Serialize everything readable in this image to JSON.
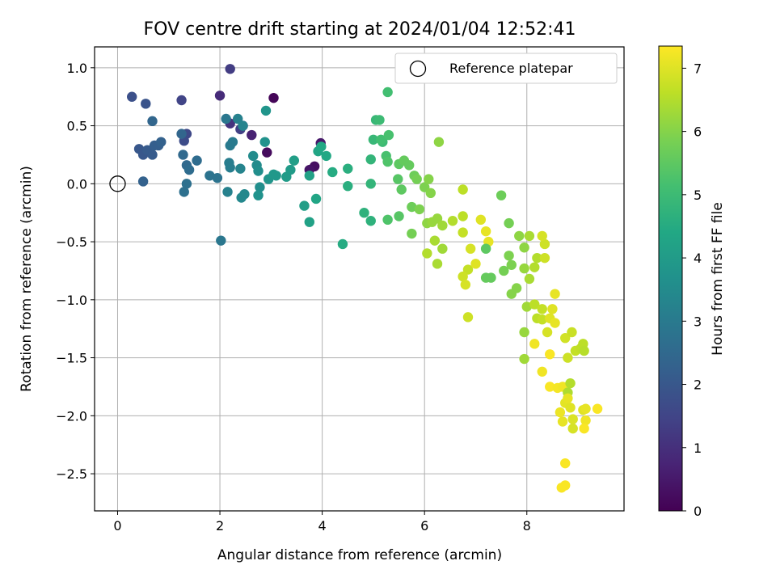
{
  "chart_data": {
    "type": "scatter",
    "title": "FOV centre drift starting at 2024/01/04 12:52:41",
    "xlabel": "Angular distance from reference (arcmin)",
    "ylabel": "Rotation from reference (arcmin)",
    "xlim": [
      -0.45,
      9.9
    ],
    "ylim": [
      -2.82,
      1.18
    ],
    "xticks": [
      0,
      2,
      4,
      6,
      8
    ],
    "xtick_labels": [
      "0",
      "2",
      "4",
      "6",
      "8"
    ],
    "yticks": [
      -2.5,
      -2.0,
      -1.5,
      -1.0,
      -0.5,
      0.0,
      0.5,
      1.0
    ],
    "ytick_labels": [
      "−2.5",
      "−2.0",
      "−1.5",
      "−1.0",
      "−0.5",
      "0.0",
      "0.5",
      "1.0"
    ],
    "grid": true,
    "legend": {
      "label": "Reference platepar",
      "position": "top-right"
    },
    "reference_point": {
      "x": 0,
      "y": 0
    },
    "colorbar": {
      "label": "Hours from first FF file",
      "colormap": "viridis",
      "range": [
        0,
        7.35
      ],
      "ticks": [
        0,
        1,
        2,
        3,
        4,
        5,
        6,
        7
      ],
      "tick_labels": [
        "0",
        "1",
        "2",
        "3",
        "4",
        "5",
        "6",
        "7"
      ]
    },
    "colors": {
      "axes": "#000000",
      "grid": "#b0b0b0"
    },
    "points": [
      {
        "x": 3.05,
        "y": 0.74,
        "c": 0.1
      },
      {
        "x": 2.92,
        "y": 0.27,
        "c": 0.2
      },
      {
        "x": 3.85,
        "y": 0.15,
        "c": 0.3
      },
      {
        "x": 3.75,
        "y": 0.12,
        "c": 0.4
      },
      {
        "x": 3.97,
        "y": 0.35,
        "c": 0.5
      },
      {
        "x": 2.62,
        "y": 0.42,
        "c": 0.7
      },
      {
        "x": 2.45,
        "y": 0.5,
        "c": 0.8
      },
      {
        "x": 2.0,
        "y": 0.76,
        "c": 0.9
      },
      {
        "x": 2.2,
        "y": 0.52,
        "c": 1.1
      },
      {
        "x": 2.2,
        "y": 0.99,
        "c": 1.3
      },
      {
        "x": 2.4,
        "y": 0.47,
        "c": 1.4
      },
      {
        "x": 1.25,
        "y": 0.72,
        "c": 1.5
      },
      {
        "x": 1.35,
        "y": 0.43,
        "c": 1.6
      },
      {
        "x": 1.3,
        "y": 0.37,
        "c": 1.7
      },
      {
        "x": 0.28,
        "y": 0.75,
        "c": 1.8
      },
      {
        "x": 0.55,
        "y": 0.69,
        "c": 1.9
      },
      {
        "x": 0.42,
        "y": 0.3,
        "c": 2.0
      },
      {
        "x": 0.5,
        "y": 0.25,
        "c": 2.0
      },
      {
        "x": 0.58,
        "y": 0.29,
        "c": 2.1
      },
      {
        "x": 0.68,
        "y": 0.25,
        "c": 2.1
      },
      {
        "x": 0.72,
        "y": 0.33,
        "c": 2.2
      },
      {
        "x": 0.8,
        "y": 0.33,
        "c": 2.2
      },
      {
        "x": 0.85,
        "y": 0.36,
        "c": 2.3
      },
      {
        "x": 0.5,
        "y": 0.02,
        "c": 2.3
      },
      {
        "x": 0.68,
        "y": 0.54,
        "c": 2.4
      },
      {
        "x": 1.25,
        "y": 0.43,
        "c": 2.4
      },
      {
        "x": 1.28,
        "y": 0.25,
        "c": 2.5
      },
      {
        "x": 1.35,
        "y": 0.16,
        "c": 2.5
      },
      {
        "x": 1.55,
        "y": 0.2,
        "c": 2.6
      },
      {
        "x": 1.4,
        "y": 0.12,
        "c": 2.6
      },
      {
        "x": 1.3,
        "y": -0.07,
        "c": 2.7
      },
      {
        "x": 1.35,
        "y": 0.0,
        "c": 2.7
      },
      {
        "x": 1.8,
        "y": 0.07,
        "c": 2.8
      },
      {
        "x": 1.95,
        "y": 0.05,
        "c": 2.8
      },
      {
        "x": 2.02,
        "y": -0.49,
        "c": 2.9
      },
      {
        "x": 2.12,
        "y": 0.56,
        "c": 2.9
      },
      {
        "x": 2.2,
        "y": 0.33,
        "c": 3.0
      },
      {
        "x": 2.25,
        "y": 0.36,
        "c": 3.0
      },
      {
        "x": 2.18,
        "y": 0.18,
        "c": 3.1
      },
      {
        "x": 2.2,
        "y": 0.14,
        "c": 3.1
      },
      {
        "x": 2.15,
        "y": -0.07,
        "c": 3.2
      },
      {
        "x": 2.35,
        "y": 0.56,
        "c": 3.2
      },
      {
        "x": 2.45,
        "y": 0.5,
        "c": 3.3
      },
      {
        "x": 2.4,
        "y": 0.13,
        "c": 3.3
      },
      {
        "x": 2.48,
        "y": -0.09,
        "c": 3.4
      },
      {
        "x": 2.42,
        "y": -0.12,
        "c": 3.4
      },
      {
        "x": 2.65,
        "y": 0.24,
        "c": 3.5
      },
      {
        "x": 2.72,
        "y": 0.16,
        "c": 3.5
      },
      {
        "x": 2.75,
        "y": 0.11,
        "c": 3.6
      },
      {
        "x": 2.78,
        "y": -0.03,
        "c": 3.6
      },
      {
        "x": 2.75,
        "y": -0.1,
        "c": 3.7
      },
      {
        "x": 2.88,
        "y": 0.36,
        "c": 3.7
      },
      {
        "x": 2.9,
        "y": 0.63,
        "c": 3.8
      },
      {
        "x": 2.95,
        "y": 0.04,
        "c": 3.8
      },
      {
        "x": 3.05,
        "y": 0.08,
        "c": 3.9
      },
      {
        "x": 3.1,
        "y": 0.07,
        "c": 3.9
      },
      {
        "x": 3.3,
        "y": 0.06,
        "c": 4.0
      },
      {
        "x": 3.38,
        "y": 0.12,
        "c": 4.0
      },
      {
        "x": 3.45,
        "y": 0.2,
        "c": 4.1
      },
      {
        "x": 3.65,
        "y": -0.19,
        "c": 4.1
      },
      {
        "x": 3.75,
        "y": -0.33,
        "c": 4.2
      },
      {
        "x": 3.75,
        "y": 0.07,
        "c": 4.2
      },
      {
        "x": 3.88,
        "y": -0.13,
        "c": 4.3
      },
      {
        "x": 3.92,
        "y": 0.28,
        "c": 4.3
      },
      {
        "x": 3.98,
        "y": 0.32,
        "c": 4.4
      },
      {
        "x": 4.08,
        "y": 0.24,
        "c": 4.4
      },
      {
        "x": 4.2,
        "y": 0.1,
        "c": 4.5
      },
      {
        "x": 4.4,
        "y": -0.52,
        "c": 4.5
      },
      {
        "x": 4.5,
        "y": 0.13,
        "c": 4.6
      },
      {
        "x": 4.5,
        "y": -0.02,
        "c": 4.6
      },
      {
        "x": 4.82,
        "y": -0.25,
        "c": 4.7
      },
      {
        "x": 4.95,
        "y": -0.32,
        "c": 4.7
      },
      {
        "x": 4.95,
        "y": 0.0,
        "c": 4.8
      },
      {
        "x": 4.95,
        "y": 0.21,
        "c": 4.8
      },
      {
        "x": 5.0,
        "y": 0.38,
        "c": 4.9
      },
      {
        "x": 5.05,
        "y": 0.55,
        "c": 4.9
      },
      {
        "x": 5.12,
        "y": 0.55,
        "c": 5.0
      },
      {
        "x": 5.18,
        "y": 0.36,
        "c": 5.0
      },
      {
        "x": 5.15,
        "y": 0.38,
        "c": 5.1
      },
      {
        "x": 5.28,
        "y": 0.79,
        "c": 5.1
      },
      {
        "x": 5.3,
        "y": 0.42,
        "c": 5.2
      },
      {
        "x": 5.25,
        "y": 0.24,
        "c": 5.2
      },
      {
        "x": 5.28,
        "y": 0.19,
        "c": 5.3
      },
      {
        "x": 5.28,
        "y": -0.31,
        "c": 5.3
      },
      {
        "x": 5.48,
        "y": 0.04,
        "c": 5.4
      },
      {
        "x": 5.5,
        "y": -0.28,
        "c": 5.4
      },
      {
        "x": 5.5,
        "y": 0.17,
        "c": 5.5
      },
      {
        "x": 5.55,
        "y": -0.05,
        "c": 5.5
      },
      {
        "x": 5.6,
        "y": 0.2,
        "c": 5.6
      },
      {
        "x": 5.7,
        "y": 0.16,
        "c": 5.6
      },
      {
        "x": 5.75,
        "y": -0.2,
        "c": 5.7
      },
      {
        "x": 5.8,
        "y": 0.07,
        "c": 5.7
      },
      {
        "x": 5.75,
        "y": -0.43,
        "c": 5.8
      },
      {
        "x": 5.85,
        "y": 0.04,
        "c": 5.8
      },
      {
        "x": 5.9,
        "y": -0.22,
        "c": 5.9
      },
      {
        "x": 6.0,
        "y": -0.03,
        "c": 5.9
      },
      {
        "x": 6.08,
        "y": 0.04,
        "c": 6.0
      },
      {
        "x": 6.12,
        "y": -0.08,
        "c": 6.0
      },
      {
        "x": 6.28,
        "y": 0.36,
        "c": 6.1
      },
      {
        "x": 6.05,
        "y": -0.34,
        "c": 6.1
      },
      {
        "x": 6.15,
        "y": -0.33,
        "c": 6.2
      },
      {
        "x": 6.25,
        "y": -0.3,
        "c": 6.2
      },
      {
        "x": 6.35,
        "y": -0.36,
        "c": 6.3
      },
      {
        "x": 6.35,
        "y": -0.56,
        "c": 6.3
      },
      {
        "x": 6.2,
        "y": -0.49,
        "c": 6.4
      },
      {
        "x": 6.25,
        "y": -0.69,
        "c": 6.4
      },
      {
        "x": 6.05,
        "y": -0.6,
        "c": 6.5
      },
      {
        "x": 6.55,
        "y": -0.32,
        "c": 6.5
      },
      {
        "x": 6.75,
        "y": -0.05,
        "c": 6.6
      },
      {
        "x": 6.75,
        "y": -0.28,
        "c": 6.6
      },
      {
        "x": 6.75,
        "y": -0.42,
        "c": 6.7
      },
      {
        "x": 6.85,
        "y": -0.74,
        "c": 6.7
      },
      {
        "x": 6.75,
        "y": -0.8,
        "c": 6.8
      },
      {
        "x": 6.85,
        "y": -1.15,
        "c": 6.8
      },
      {
        "x": 6.8,
        "y": -0.87,
        "c": 6.9
      },
      {
        "x": 6.9,
        "y": -0.56,
        "c": 6.9
      },
      {
        "x": 7.0,
        "y": -0.69,
        "c": 7.0
      },
      {
        "x": 7.1,
        "y": -0.31,
        "c": 7.0
      },
      {
        "x": 7.2,
        "y": -0.41,
        "c": 7.1
      },
      {
        "x": 7.25,
        "y": -0.5,
        "c": 7.1
      },
      {
        "x": 7.2,
        "y": -0.56,
        "c": 5.5
      },
      {
        "x": 7.3,
        "y": -0.81,
        "c": 5.6
      },
      {
        "x": 7.2,
        "y": -0.81,
        "c": 5.6
      },
      {
        "x": 7.5,
        "y": -0.1,
        "c": 5.7
      },
      {
        "x": 7.65,
        "y": -0.34,
        "c": 5.8
      },
      {
        "x": 7.55,
        "y": -0.75,
        "c": 5.8
      },
      {
        "x": 7.65,
        "y": -0.62,
        "c": 5.9
      },
      {
        "x": 7.7,
        "y": -0.7,
        "c": 5.9
      },
      {
        "x": 7.7,
        "y": -0.95,
        "c": 6.0
      },
      {
        "x": 7.8,
        "y": -0.9,
        "c": 6.0
      },
      {
        "x": 7.85,
        "y": -0.45,
        "c": 6.1
      },
      {
        "x": 7.95,
        "y": -0.55,
        "c": 6.1
      },
      {
        "x": 7.95,
        "y": -0.73,
        "c": 6.2
      },
      {
        "x": 7.95,
        "y": -1.28,
        "c": 6.2
      },
      {
        "x": 7.95,
        "y": -1.51,
        "c": 6.3
      },
      {
        "x": 8.0,
        "y": -1.06,
        "c": 6.3
      },
      {
        "x": 8.05,
        "y": -0.82,
        "c": 6.4
      },
      {
        "x": 8.05,
        "y": -0.45,
        "c": 6.4
      },
      {
        "x": 8.15,
        "y": -0.72,
        "c": 6.5
      },
      {
        "x": 8.2,
        "y": -0.64,
        "c": 6.5
      },
      {
        "x": 8.15,
        "y": -1.04,
        "c": 6.6
      },
      {
        "x": 8.2,
        "y": -1.16,
        "c": 6.6
      },
      {
        "x": 8.3,
        "y": -1.08,
        "c": 6.7
      },
      {
        "x": 8.3,
        "y": -1.17,
        "c": 6.7
      },
      {
        "x": 8.35,
        "y": -0.64,
        "c": 6.8
      },
      {
        "x": 8.35,
        "y": -0.52,
        "c": 6.8
      },
      {
        "x": 8.3,
        "y": -0.45,
        "c": 6.9
      },
      {
        "x": 8.4,
        "y": -1.28,
        "c": 6.9
      },
      {
        "x": 8.45,
        "y": -1.16,
        "c": 7.0
      },
      {
        "x": 8.5,
        "y": -1.08,
        "c": 7.0
      },
      {
        "x": 8.55,
        "y": -0.95,
        "c": 7.1
      },
      {
        "x": 8.55,
        "y": -1.2,
        "c": 7.1
      },
      {
        "x": 8.15,
        "y": -1.38,
        "c": 7.2
      },
      {
        "x": 8.3,
        "y": -1.62,
        "c": 7.2
      },
      {
        "x": 8.45,
        "y": -1.47,
        "c": 7.3
      },
      {
        "x": 8.45,
        "y": -1.75,
        "c": 7.3
      },
      {
        "x": 8.6,
        "y": -1.76,
        "c": 7.25
      },
      {
        "x": 8.7,
        "y": -1.75,
        "c": 7.2
      },
      {
        "x": 8.65,
        "y": -1.97,
        "c": 7.15
      },
      {
        "x": 8.7,
        "y": -2.05,
        "c": 7.1
      },
      {
        "x": 8.75,
        "y": -1.89,
        "c": 7.05
      },
      {
        "x": 8.85,
        "y": -1.93,
        "c": 7.0
      },
      {
        "x": 8.9,
        "y": -2.03,
        "c": 6.95
      },
      {
        "x": 8.9,
        "y": -2.11,
        "c": 6.9
      },
      {
        "x": 8.75,
        "y": -1.33,
        "c": 6.85
      },
      {
        "x": 8.8,
        "y": -1.5,
        "c": 6.8
      },
      {
        "x": 8.88,
        "y": -1.28,
        "c": 6.75
      },
      {
        "x": 8.95,
        "y": -1.44,
        "c": 6.7
      },
      {
        "x": 9.05,
        "y": -1.42,
        "c": 6.65
      },
      {
        "x": 9.1,
        "y": -1.38,
        "c": 6.6
      },
      {
        "x": 9.12,
        "y": -1.44,
        "c": 6.55
      },
      {
        "x": 8.85,
        "y": -1.72,
        "c": 6.5
      },
      {
        "x": 8.8,
        "y": -1.8,
        "c": 6.45
      },
      {
        "x": 9.1,
        "y": -1.95,
        "c": 7.0
      },
      {
        "x": 9.15,
        "y": -1.94,
        "c": 7.1
      },
      {
        "x": 9.15,
        "y": -2.04,
        "c": 7.2
      },
      {
        "x": 9.12,
        "y": -2.11,
        "c": 7.3
      },
      {
        "x": 9.38,
        "y": -1.94,
        "c": 7.3
      },
      {
        "x": 8.75,
        "y": -2.41,
        "c": 7.3
      },
      {
        "x": 8.75,
        "y": -2.6,
        "c": 7.3
      },
      {
        "x": 8.68,
        "y": -2.62,
        "c": 7.3
      },
      {
        "x": 8.8,
        "y": -1.85,
        "c": 7.1
      }
    ]
  }
}
